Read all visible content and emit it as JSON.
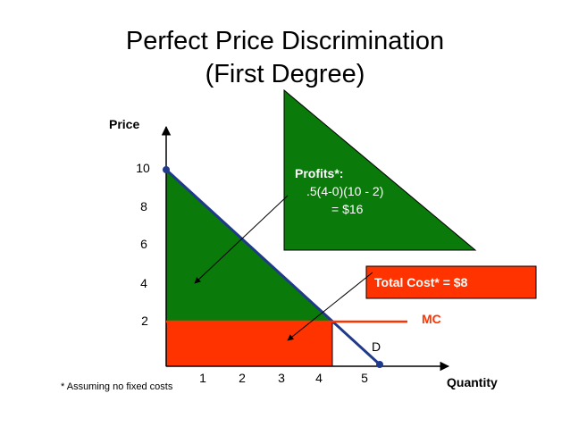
{
  "title": {
    "line1": "Perfect Price Discrimination",
    "line2": "(First Degree)"
  },
  "axes": {
    "y_label": "Price",
    "x_label": "Quantity",
    "y_ticks": [
      "10",
      "8",
      "6",
      "4",
      "2"
    ],
    "x_ticks": [
      "1",
      "2",
      "3",
      "4",
      "5"
    ]
  },
  "curves": {
    "demand_label": "D",
    "mc_label": "MC"
  },
  "profits_box": {
    "heading": "Profits*:",
    "formula": ".5(4-0)(10 - 2)",
    "result": "= $16"
  },
  "cost_box": {
    "text": "Total Cost* = $8"
  },
  "footnote": "* Assuming no fixed costs",
  "colors": {
    "profit_fill": "#0a7a0a",
    "cost_fill": "#ff3300",
    "demand_line": "#1f3a8a",
    "mc_line": "#ff3300",
    "mc_label": "#ff3300"
  }
}
